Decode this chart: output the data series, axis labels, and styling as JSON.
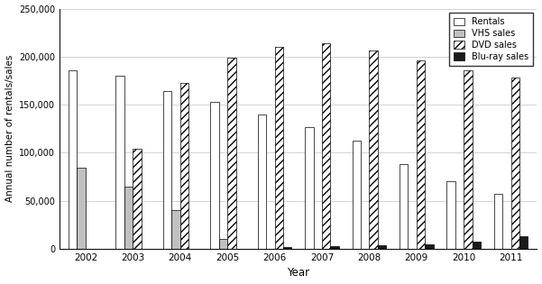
{
  "years": [
    2002,
    2003,
    2004,
    2005,
    2006,
    2007,
    2008,
    2009,
    2010,
    2011
  ],
  "rentals": [
    186000,
    180000,
    164000,
    153000,
    140000,
    127000,
    113000,
    88000,
    70000,
    57000
  ],
  "vhs_sales": [
    84000,
    65000,
    40000,
    10000,
    0,
    0,
    0,
    0,
    0,
    0
  ],
  "dvd_sales": [
    0,
    104000,
    173000,
    199000,
    210000,
    214000,
    206000,
    196000,
    186000,
    178000
  ],
  "bluray_sales": [
    0,
    0,
    0,
    0,
    2000,
    3000,
    4000,
    5000,
    8000,
    13000
  ],
  "ylim": [
    0,
    250000
  ],
  "yticks": [
    0,
    50000,
    100000,
    150000,
    200000,
    250000
  ],
  "ytick_labels": [
    "0",
    "50,000",
    "100,000",
    "150,000",
    "200,000",
    "250,000"
  ],
  "xlabel": "Year",
  "ylabel": "Annual number of rentals/sales",
  "legend_labels": [
    "Rentals",
    "VHS sales",
    "DVD sales",
    "Blu-ray sales"
  ],
  "bar_width": 0.18,
  "background_color": "#ffffff",
  "grid_color": "#cccccc",
  "rentals_color": "#ffffff",
  "vhs_color": "#c0c0c0",
  "dvd_hatch": "////",
  "bluray_color": "#1a1a1a"
}
